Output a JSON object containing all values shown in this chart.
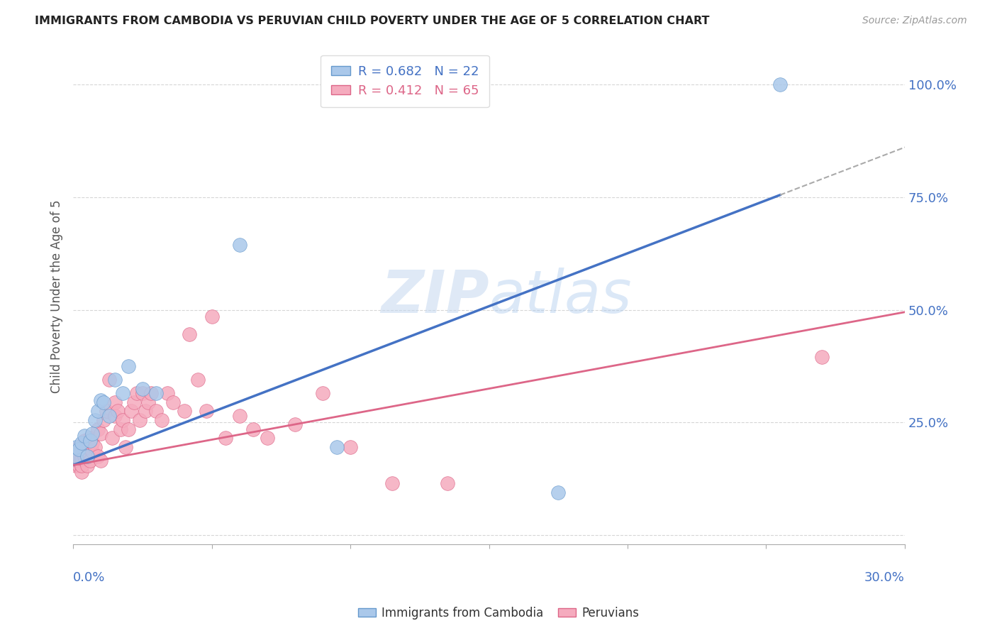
{
  "title": "IMMIGRANTS FROM CAMBODIA VS PERUVIAN CHILD POVERTY UNDER THE AGE OF 5 CORRELATION CHART",
  "source": "Source: ZipAtlas.com",
  "ylabel": "Child Poverty Under the Age of 5",
  "xlim": [
    0.0,
    0.3
  ],
  "ylim": [
    -0.02,
    1.08
  ],
  "yticks": [
    0.0,
    0.25,
    0.5,
    0.75,
    1.0
  ],
  "ytick_labels": [
    "",
    "25.0%",
    "50.0%",
    "75.0%",
    "100.0%"
  ],
  "watermark": "ZIPatlas",
  "cambodia_color": "#aac8ea",
  "cambodia_edge": "#6699cc",
  "peruvian_color": "#f5abbe",
  "peruvian_edge": "#dd6688",
  "line_cambodia": "#4472c4",
  "line_peruvian": "#dd6688",
  "line_dashed": "#aaaaaa",
  "title_color": "#222222",
  "axis_label_color": "#4472c4",
  "cambodia_x": [
    0.001,
    0.001,
    0.002,
    0.003,
    0.004,
    0.005,
    0.006,
    0.007,
    0.008,
    0.009,
    0.01,
    0.011,
    0.013,
    0.015,
    0.018,
    0.02,
    0.025,
    0.03,
    0.06,
    0.095,
    0.175,
    0.255
  ],
  "cambodia_y": [
    0.175,
    0.195,
    0.19,
    0.205,
    0.22,
    0.175,
    0.21,
    0.225,
    0.255,
    0.275,
    0.3,
    0.295,
    0.265,
    0.345,
    0.315,
    0.375,
    0.325,
    0.315,
    0.645,
    0.195,
    0.095,
    1.0
  ],
  "peruvian_x": [
    0.001,
    0.001,
    0.001,
    0.001,
    0.002,
    0.002,
    0.002,
    0.002,
    0.003,
    0.003,
    0.003,
    0.003,
    0.004,
    0.004,
    0.004,
    0.005,
    0.005,
    0.005,
    0.006,
    0.006,
    0.007,
    0.007,
    0.008,
    0.009,
    0.009,
    0.01,
    0.01,
    0.011,
    0.012,
    0.013,
    0.014,
    0.015,
    0.015,
    0.016,
    0.017,
    0.018,
    0.019,
    0.02,
    0.021,
    0.022,
    0.023,
    0.024,
    0.025,
    0.026,
    0.027,
    0.028,
    0.03,
    0.032,
    0.034,
    0.036,
    0.04,
    0.042,
    0.045,
    0.048,
    0.05,
    0.055,
    0.06,
    0.065,
    0.07,
    0.08,
    0.09,
    0.1,
    0.115,
    0.135,
    0.27
  ],
  "peruvian_y": [
    0.155,
    0.165,
    0.175,
    0.185,
    0.155,
    0.165,
    0.175,
    0.195,
    0.14,
    0.155,
    0.17,
    0.185,
    0.175,
    0.195,
    0.21,
    0.155,
    0.175,
    0.195,
    0.165,
    0.215,
    0.185,
    0.205,
    0.195,
    0.175,
    0.235,
    0.165,
    0.225,
    0.255,
    0.275,
    0.345,
    0.215,
    0.265,
    0.295,
    0.275,
    0.235,
    0.255,
    0.195,
    0.235,
    0.275,
    0.295,
    0.315,
    0.255,
    0.315,
    0.275,
    0.295,
    0.315,
    0.275,
    0.255,
    0.315,
    0.295,
    0.275,
    0.445,
    0.345,
    0.275,
    0.485,
    0.215,
    0.265,
    0.235,
    0.215,
    0.245,
    0.315,
    0.195,
    0.115,
    0.115,
    0.395
  ],
  "cam_line_x0": 0.0,
  "cam_line_x1": 0.255,
  "cam_line_y0": 0.155,
  "cam_line_y1": 0.755,
  "dash_line_x0": 0.255,
  "dash_line_x1": 0.3,
  "per_line_x0": 0.0,
  "per_line_x1": 0.3,
  "per_line_y0": 0.155,
  "per_line_y1": 0.495
}
